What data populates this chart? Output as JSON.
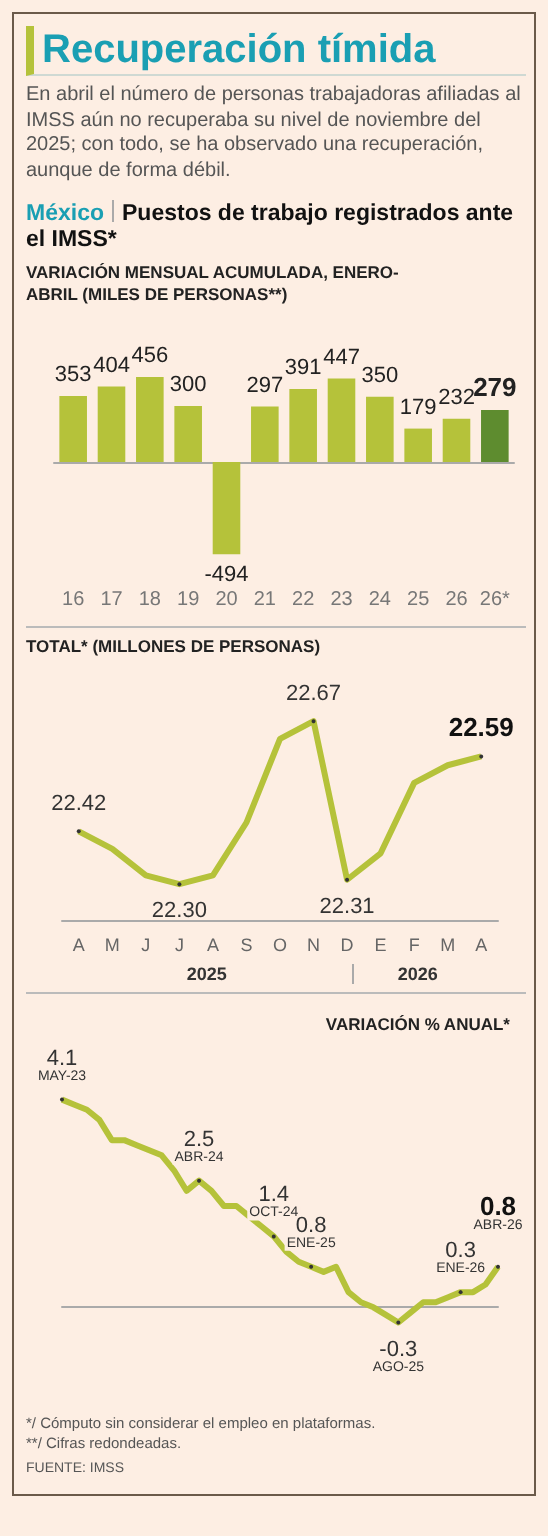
{
  "chart_data": [
    {
      "type": "bar",
      "title": "Recuperación tímida",
      "subtitle": "En abril el número de personas trabajadoras afiliadas al IMSS aún no recuperaba su nivel de noviembre del 2025; con todo, se ha observado una recuperación, aunque de forma débil.",
      "annotations": [
        "México",
        "Puestos de trabajo registrados ante el IMSS*"
      ],
      "ylabel": "VARIACIÓN MENSUAL ACUMULADA, ENERO-ABRIL (MILES DE PERSONAS**)",
      "categories": [
        "16",
        "17",
        "18",
        "19",
        "20",
        "21",
        "22",
        "23",
        "24",
        "25",
        "26",
        "26*"
      ],
      "values": [
        353,
        404,
        456,
        300,
        -494,
        297,
        391,
        447,
        350,
        179,
        232,
        279
      ],
      "colors": [
        "#b5c23a",
        "#b5c23a",
        "#b5c23a",
        "#b5c23a",
        "#b5c23a",
        "#b5c23a",
        "#b5c23a",
        "#b5c23a",
        "#b5c23a",
        "#b5c23a",
        "#b5c23a",
        "#5e8c2f"
      ],
      "data_labels": true,
      "grid": false
    },
    {
      "type": "line",
      "title": "TOTAL* (MILLONES DE PERSONAS)",
      "categories": [
        "A",
        "M",
        "J",
        "J",
        "A",
        "S",
        "O",
        "N",
        "D",
        "E",
        "F",
        "M",
        "A"
      ],
      "values": [
        22.42,
        22.38,
        22.32,
        22.3,
        22.32,
        22.44,
        22.63,
        22.67,
        22.31,
        22.37,
        22.53,
        22.57,
        22.59
      ],
      "value_labels": [
        "22.42",
        null,
        null,
        "22.30",
        null,
        null,
        null,
        "22.67",
        "22.31",
        null,
        null,
        null,
        "22.59"
      ],
      "color": "#b5c23a",
      "annotations": [
        "2025",
        "2026"
      ],
      "marker": "none",
      "grid": false
    },
    {
      "type": "line",
      "title": "VARIACIÓN % ANUAL*",
      "categories": [
        null,
        null,
        null,
        null,
        null,
        null,
        null,
        null,
        null,
        null,
        null,
        null,
        null,
        null,
        null,
        null,
        null,
        null,
        null,
        null,
        null,
        null,
        null,
        null,
        null,
        null,
        null,
        null,
        null,
        null,
        null,
        null,
        null,
        null,
        null,
        null
      ],
      "values": [
        4.1,
        4.0,
        3.9,
        3.7,
        3.3,
        3.3,
        3.2,
        3.1,
        3.0,
        2.7,
        2.3,
        2.5,
        2.3,
        2.0,
        2.0,
        1.8,
        1.6,
        1.4,
        1.1,
        0.9,
        0.8,
        0.7,
        0.8,
        0.3,
        0.1,
        0.0,
        -0.15,
        -0.3,
        -0.1,
        0.1,
        0.1,
        0.2,
        0.3,
        0.3,
        0.45,
        0.8
      ],
      "value_labels": [
        "4.1",
        null,
        null,
        null,
        null,
        null,
        null,
        null,
        null,
        null,
        null,
        "2.5",
        null,
        null,
        null,
        null,
        null,
        "1.4",
        null,
        null,
        "0.8",
        null,
        null,
        null,
        null,
        null,
        null,
        "-0.3",
        null,
        null,
        null,
        null,
        "0.3",
        null,
        null,
        "0.8"
      ],
      "color": "#b5c23a",
      "tick_labels": false,
      "marker": "none",
      "grid": false,
      "annotations": [
        "MAY-23",
        "ABR-24",
        "OCT-24",
        "ENE-25",
        "AGO-25",
        "ENE-26",
        "ABR-26",
        "*/ Cómputo sin considerar el empleo en plataformas.",
        "**/ Cifras redondeadas.",
        "FUENTE: IMSS"
      ]
    }
  ]
}
